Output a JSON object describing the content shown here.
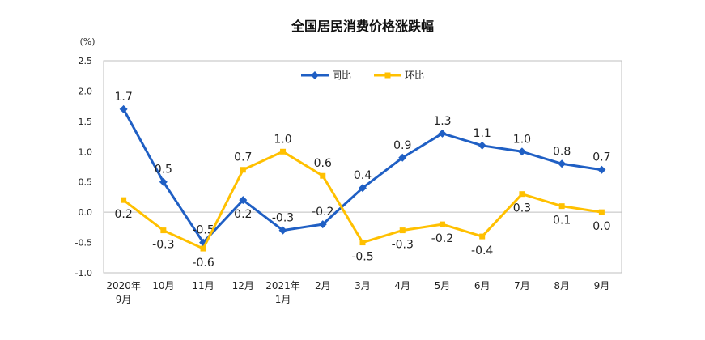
{
  "chart_data": {
    "type": "line",
    "title": "全国居民消费价格涨跌幅",
    "unit_label": "(%)",
    "categories": [
      [
        "2020年",
        "9月"
      ],
      [
        "10月"
      ],
      [
        "11月"
      ],
      [
        "12月"
      ],
      [
        "2021年",
        "1月"
      ],
      [
        "2月"
      ],
      [
        "3月"
      ],
      [
        "4月"
      ],
      [
        "5月"
      ],
      [
        "6月"
      ],
      [
        "7月"
      ],
      [
        "8月"
      ],
      [
        "9月"
      ]
    ],
    "series": [
      {
        "name": "同比",
        "color": "#1f5fc4",
        "marker": "diamond",
        "values": [
          1.7,
          0.5,
          -0.5,
          0.2,
          -0.3,
          -0.2,
          0.4,
          0.9,
          1.3,
          1.1,
          1.0,
          0.8,
          0.7
        ],
        "labels": [
          "1.7",
          "0.5",
          "-0.5",
          "0.2",
          "-0.3",
          "-0.2",
          "0.4",
          "0.9",
          "1.3",
          "1.1",
          "1.0",
          "0.8",
          "0.7"
        ]
      },
      {
        "name": "环比",
        "color": "#ffc000",
        "marker": "square",
        "values": [
          0.2,
          -0.3,
          -0.6,
          0.7,
          1.0,
          0.6,
          -0.5,
          -0.3,
          -0.2,
          -0.4,
          0.3,
          0.1,
          0.0
        ],
        "labels": [
          "0.2",
          "-0.3",
          "-0.6",
          "0.7",
          "1.0",
          "0.6",
          "-0.5",
          "-0.3",
          "-0.2",
          "-0.4",
          "0.3",
          "0.1",
          "0.0"
        ]
      }
    ],
    "ylim": [
      -1.0,
      2.5
    ],
    "yticks": [
      2.5,
      2.0,
      1.5,
      1.0,
      0.5,
      0.0,
      -0.5,
      -1.0
    ],
    "ytick_labels": [
      "2.5",
      "2.0",
      "1.5",
      "1.0",
      "0.5",
      "0.0",
      "-0.5",
      "-1.0"
    ],
    "grid": false,
    "legend_position": "top-center",
    "axis_color": "#bfbfbf"
  }
}
